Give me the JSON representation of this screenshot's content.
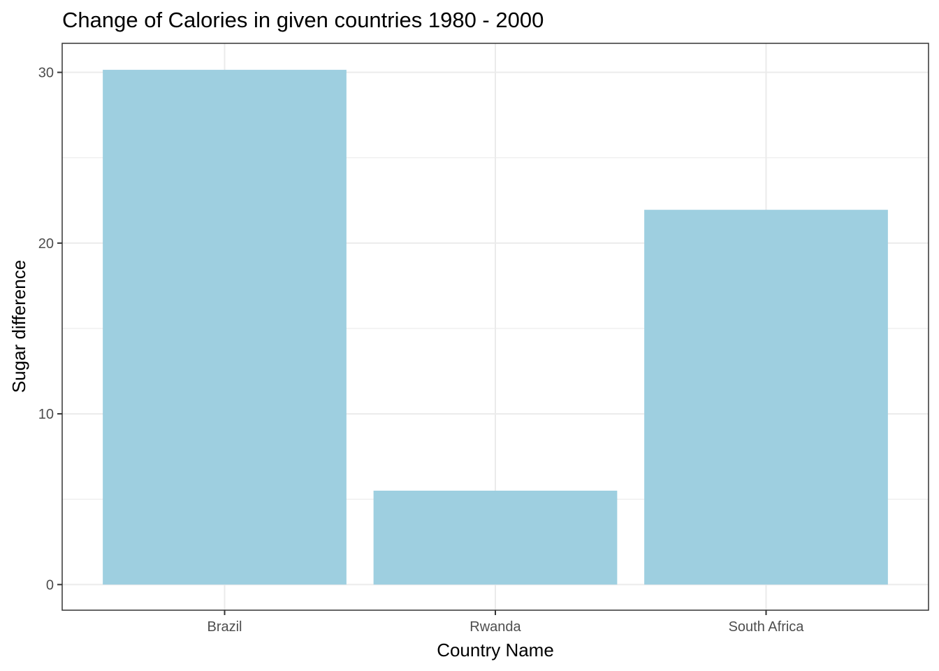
{
  "chart_data": {
    "type": "bar",
    "title": "Change of Calories in given countries 1980 - 2000",
    "xlabel": "Country Name",
    "ylabel": "Sugar difference",
    "categories": [
      "Brazil",
      "Rwanda",
      "South Africa"
    ],
    "values": [
      30.15,
      5.5,
      21.95
    ],
    "ylim": [
      -1.5,
      31.7
    ],
    "yticks": [
      0,
      10,
      20,
      30
    ],
    "ytick_labels": [
      "0",
      "10",
      "20",
      "30"
    ],
    "y_minor_ticks": [
      5,
      15,
      25
    ],
    "grid": true,
    "legend": "none",
    "bar_color": "#9ecfe0",
    "theme": "bw"
  }
}
